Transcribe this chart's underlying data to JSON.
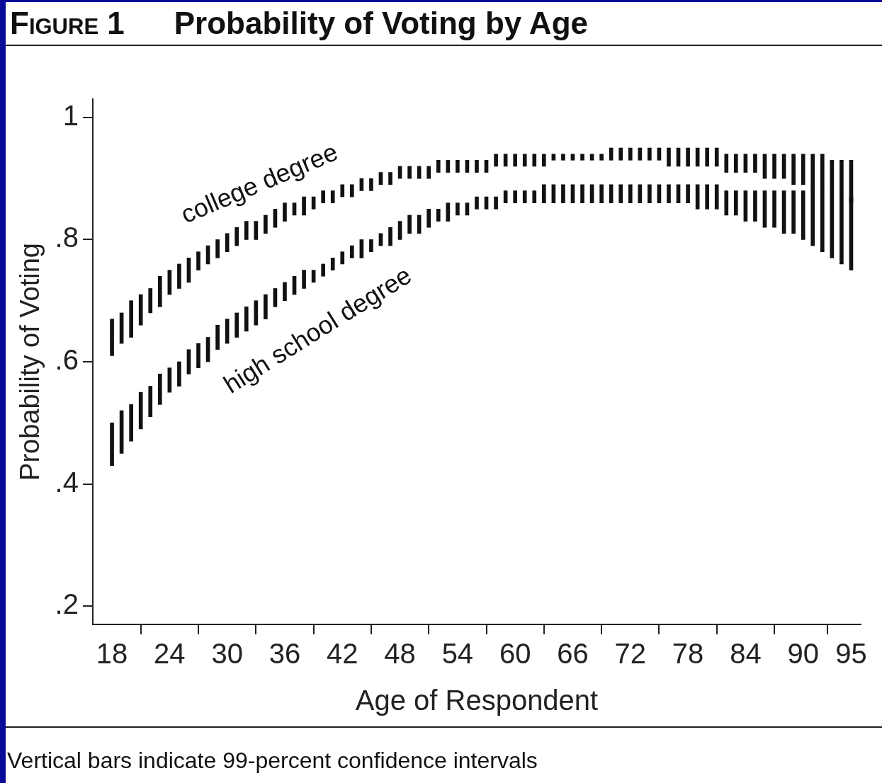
{
  "chart_data": {
    "type": "bar",
    "title": "Figure 1",
    "subtitle": "Probability of Voting by Age",
    "xlabel": "Age of Respondent",
    "ylabel": "Probability of Voting",
    "annotations": [
      "Vertical bars indicate 99-percent confidence intervals"
    ],
    "x": [
      18,
      19,
      20,
      21,
      22,
      23,
      24,
      25,
      26,
      27,
      28,
      29,
      30,
      31,
      32,
      33,
      34,
      35,
      36,
      37,
      38,
      39,
      40,
      41,
      42,
      43,
      44,
      45,
      46,
      47,
      48,
      49,
      50,
      51,
      52,
      53,
      54,
      55,
      56,
      57,
      58,
      59,
      60,
      61,
      62,
      63,
      64,
      65,
      66,
      67,
      68,
      69,
      70,
      71,
      72,
      73,
      74,
      75,
      76,
      77,
      78,
      79,
      80,
      81,
      82,
      83,
      84,
      85,
      86,
      87,
      88,
      89,
      90,
      91,
      92,
      93,
      94,
      95
    ],
    "xlim": [
      16,
      96
    ],
    "xticks": [
      18,
      24,
      30,
      36,
      42,
      48,
      54,
      60,
      66,
      72,
      78,
      84,
      90,
      95
    ],
    "ylim": [
      0.17,
      1.03
    ],
    "yticks": [
      {
        "value": 0.2,
        "label": ".2"
      },
      {
        "value": 0.4,
        "label": ".4"
      },
      {
        "value": 0.6,
        "label": ".6"
      },
      {
        "value": 0.8,
        "label": ".8"
      },
      1
    ],
    "grid": false,
    "legend": false,
    "series": [
      {
        "name": "college degree",
        "color": "#111111",
        "base": [
          0.61,
          0.63,
          0.64,
          0.66,
          0.68,
          0.69,
          0.71,
          0.72,
          0.73,
          0.75,
          0.76,
          0.77,
          0.78,
          0.79,
          0.8,
          0.8,
          0.81,
          0.82,
          0.83,
          0.84,
          0.84,
          0.85,
          0.86,
          0.86,
          0.87,
          0.87,
          0.88,
          0.88,
          0.89,
          0.89,
          0.9,
          0.9,
          0.9,
          0.9,
          0.91,
          0.91,
          0.91,
          0.91,
          0.91,
          0.91,
          0.92,
          0.92,
          0.92,
          0.92,
          0.92,
          0.92,
          0.93,
          0.93,
          0.93,
          0.93,
          0.93,
          0.93,
          0.93,
          0.93,
          0.93,
          0.93,
          0.93,
          0.93,
          0.92,
          0.92,
          0.92,
          0.92,
          0.92,
          0.92,
          0.91,
          0.91,
          0.91,
          0.91,
          0.9,
          0.9,
          0.9,
          0.89,
          0.89,
          0.88,
          0.88,
          0.87,
          0.87,
          0.86
        ],
        "values": [
          0.06,
          0.05,
          0.06,
          0.05,
          0.04,
          0.05,
          0.04,
          0.04,
          0.04,
          0.03,
          0.03,
          0.03,
          0.03,
          0.03,
          0.03,
          0.03,
          0.03,
          0.03,
          0.03,
          0.02,
          0.03,
          0.02,
          0.02,
          0.02,
          0.02,
          0.02,
          0.02,
          0.02,
          0.02,
          0.02,
          0.02,
          0.02,
          0.02,
          0.02,
          0.02,
          0.02,
          0.02,
          0.02,
          0.02,
          0.02,
          0.02,
          0.02,
          0.02,
          0.02,
          0.02,
          0.02,
          0.01,
          0.01,
          0.01,
          0.01,
          0.01,
          0.01,
          0.02,
          0.02,
          0.02,
          0.02,
          0.02,
          0.02,
          0.03,
          0.03,
          0.03,
          0.03,
          0.03,
          0.03,
          0.03,
          0.03,
          0.03,
          0.03,
          0.04,
          0.04,
          0.04,
          0.05,
          0.05,
          0.06,
          0.06,
          0.06,
          0.06,
          0.07
        ]
      },
      {
        "name": "high school degree",
        "color": "#111111",
        "base": [
          0.43,
          0.45,
          0.47,
          0.49,
          0.51,
          0.53,
          0.55,
          0.56,
          0.58,
          0.59,
          0.6,
          0.62,
          0.63,
          0.64,
          0.65,
          0.66,
          0.67,
          0.69,
          0.7,
          0.71,
          0.72,
          0.73,
          0.74,
          0.75,
          0.76,
          0.77,
          0.77,
          0.78,
          0.79,
          0.79,
          0.8,
          0.81,
          0.81,
          0.82,
          0.83,
          0.83,
          0.84,
          0.84,
          0.85,
          0.85,
          0.85,
          0.86,
          0.86,
          0.86,
          0.86,
          0.86,
          0.86,
          0.86,
          0.86,
          0.86,
          0.86,
          0.86,
          0.86,
          0.86,
          0.86,
          0.86,
          0.86,
          0.86,
          0.86,
          0.86,
          0.86,
          0.85,
          0.85,
          0.85,
          0.84,
          0.84,
          0.83,
          0.83,
          0.82,
          0.82,
          0.81,
          0.81,
          0.8,
          0.79,
          0.78,
          0.77,
          0.76,
          0.75
        ],
        "values": [
          0.07,
          0.07,
          0.06,
          0.06,
          0.05,
          0.05,
          0.04,
          0.04,
          0.04,
          0.04,
          0.04,
          0.04,
          0.04,
          0.04,
          0.04,
          0.04,
          0.04,
          0.03,
          0.03,
          0.03,
          0.03,
          0.02,
          0.02,
          0.02,
          0.02,
          0.02,
          0.03,
          0.02,
          0.02,
          0.03,
          0.03,
          0.03,
          0.03,
          0.03,
          0.02,
          0.03,
          0.02,
          0.02,
          0.02,
          0.02,
          0.02,
          0.02,
          0.02,
          0.02,
          0.02,
          0.03,
          0.03,
          0.03,
          0.03,
          0.03,
          0.03,
          0.03,
          0.03,
          0.03,
          0.03,
          0.03,
          0.03,
          0.03,
          0.03,
          0.03,
          0.03,
          0.04,
          0.04,
          0.04,
          0.04,
          0.04,
          0.05,
          0.05,
          0.06,
          0.06,
          0.07,
          0.07,
          0.08,
          0.09,
          0.1,
          0.1,
          0.11,
          0.12
        ]
      }
    ]
  }
}
